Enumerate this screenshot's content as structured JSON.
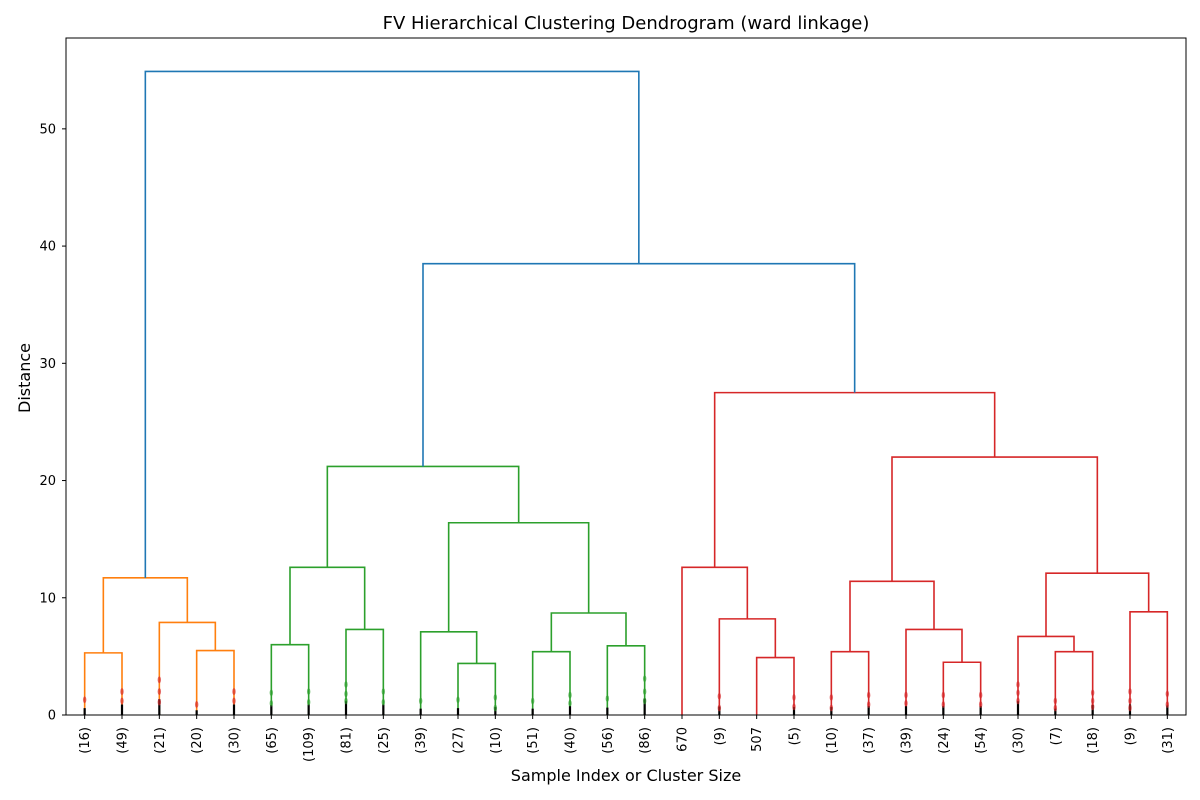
{
  "chart_data": {
    "type": "dendrogram",
    "title": "FV Hierarchical Clustering Dendrogram (ward linkage)",
    "xlabel": "Sample Index or Cluster Size",
    "ylabel": "Distance",
    "ylim": [
      0,
      57.75
    ],
    "yticks": [
      0,
      10,
      20,
      30,
      40,
      50
    ],
    "grid": false,
    "leaves": [
      "(16)",
      "(49)",
      "(21)",
      "(20)",
      "(30)",
      "(65)",
      "(109)",
      "(81)",
      "(25)",
      "(39)",
      "(27)",
      "(10)",
      "(51)",
      "(40)",
      "(56)",
      "(86)",
      "670",
      "(9)",
      "507",
      "(5)",
      "(10)",
      "(37)",
      "(39)",
      "(24)",
      "(54)",
      "(30)",
      "(7)",
      "(18)",
      "(9)",
      "(31)"
    ],
    "colors": {
      "orange": "#ff7f0e",
      "green": "#2ca02c",
      "red": "#d62728",
      "blue": "#1f77b4"
    },
    "links": [
      {
        "left": 0,
        "right": 1,
        "height": 5.3,
        "color": "orange"
      },
      {
        "left": 3,
        "right": 4,
        "height": 5.5,
        "color": "orange"
      },
      {
        "left": 2,
        "right": 31,
        "height": 7.9,
        "color": "orange"
      },
      {
        "left": 30,
        "right": 32,
        "height": 11.7,
        "color": "orange"
      },
      {
        "left": 5,
        "right": 6,
        "height": 6.0,
        "color": "green"
      },
      {
        "left": 7,
        "right": 8,
        "height": 7.3,
        "color": "green"
      },
      {
        "left": 34,
        "right": 35,
        "height": 12.6,
        "color": "green"
      },
      {
        "left": 10,
        "right": 11,
        "height": 4.4,
        "color": "green"
      },
      {
        "left": 9,
        "right": 37,
        "height": 7.1,
        "color": "green"
      },
      {
        "left": 12,
        "right": 13,
        "height": 5.4,
        "color": "green"
      },
      {
        "left": 14,
        "right": 15,
        "height": 5.9,
        "color": "green"
      },
      {
        "left": 39,
        "right": 40,
        "height": 8.7,
        "color": "green"
      },
      {
        "left": 38,
        "right": 41,
        "height": 16.4,
        "color": "green"
      },
      {
        "left": 36,
        "right": 42,
        "height": 21.2,
        "color": "green"
      },
      {
        "left": 18,
        "right": 19,
        "height": 4.9,
        "color": "red"
      },
      {
        "left": 17,
        "right": 44,
        "height": 8.2,
        "color": "red"
      },
      {
        "left": 16,
        "right": 45,
        "height": 12.6,
        "color": "red"
      },
      {
        "left": 20,
        "right": 21,
        "height": 5.4,
        "color": "red"
      },
      {
        "left": 23,
        "right": 24,
        "height": 4.5,
        "color": "red"
      },
      {
        "left": 22,
        "right": 48,
        "height": 7.3,
        "color": "red"
      },
      {
        "left": 47,
        "right": 49,
        "height": 11.4,
        "color": "red"
      },
      {
        "left": 26,
        "right": 27,
        "height": 5.4,
        "color": "red"
      },
      {
        "left": 25,
        "right": 51,
        "height": 6.7,
        "color": "red"
      },
      {
        "left": 28,
        "right": 29,
        "height": 8.8,
        "color": "red"
      },
      {
        "left": 52,
        "right": 53,
        "height": 12.1,
        "color": "red"
      },
      {
        "left": 50,
        "right": 54,
        "height": 22.0,
        "color": "red"
      },
      {
        "left": 46,
        "right": 55,
        "height": 27.5,
        "color": "red"
      },
      {
        "left": 43,
        "right": 56,
        "height": 38.5,
        "color": "blue"
      },
      {
        "left": 33,
        "right": 57,
        "height": 54.9,
        "color": "blue"
      }
    ],
    "leaf_points": [
      {
        "leaf": 0,
        "values": [
          1.3
        ],
        "color": "red"
      },
      {
        "leaf": 1,
        "values": [
          1.2,
          2.0
        ],
        "color": "red"
      },
      {
        "leaf": 2,
        "values": [
          1.1,
          2.0,
          3.0
        ],
        "color": "red"
      },
      {
        "leaf": 3,
        "values": [
          0.9
        ],
        "color": "red"
      },
      {
        "leaf": 4,
        "values": [
          1.2,
          2.0
        ],
        "color": "red"
      },
      {
        "leaf": 5,
        "values": [
          1.0,
          1.9
        ],
        "color": "green"
      },
      {
        "leaf": 6,
        "values": [
          1.1,
          2.0
        ],
        "color": "green"
      },
      {
        "leaf": 7,
        "values": [
          1.2,
          1.8,
          2.6
        ],
        "color": "green"
      },
      {
        "leaf": 8,
        "values": [
          1.1,
          2.0
        ],
        "color": "green"
      },
      {
        "leaf": 9,
        "values": [
          1.2
        ],
        "color": "green"
      },
      {
        "leaf": 10,
        "values": [
          1.3
        ],
        "color": "green"
      },
      {
        "leaf": 11,
        "values": [
          0.6,
          1.5
        ],
        "color": "green"
      },
      {
        "leaf": 12,
        "values": [
          1.2
        ],
        "color": "green"
      },
      {
        "leaf": 13,
        "values": [
          1.0,
          1.7
        ],
        "color": "green"
      },
      {
        "leaf": 14,
        "values": [
          1.4
        ],
        "color": "green"
      },
      {
        "leaf": 15,
        "values": [
          1.2,
          2.0,
          3.1
        ],
        "color": "green"
      },
      {
        "leaf": 17,
        "values": [
          0.6,
          1.6
        ],
        "color": "red"
      },
      {
        "leaf": 19,
        "values": [
          0.7,
          1.5
        ],
        "color": "red"
      },
      {
        "leaf": 20,
        "values": [
          0.6,
          1.5
        ],
        "color": "red"
      },
      {
        "leaf": 21,
        "values": [
          0.9,
          1.7
        ],
        "color": "red"
      },
      {
        "leaf": 22,
        "values": [
          1.0,
          1.7
        ],
        "color": "red"
      },
      {
        "leaf": 23,
        "values": [
          0.9,
          1.7
        ],
        "color": "red"
      },
      {
        "leaf": 24,
        "values": [
          0.9,
          1.7
        ],
        "color": "red"
      },
      {
        "leaf": 25,
        "values": [
          1.2,
          1.9,
          2.6
        ],
        "color": "red"
      },
      {
        "leaf": 26,
        "values": [
          0.6,
          1.2
        ],
        "color": "red"
      },
      {
        "leaf": 27,
        "values": [
          0.7,
          1.2,
          1.9
        ],
        "color": "red"
      },
      {
        "leaf": 28,
        "values": [
          0.6,
          1.2,
          2.0
        ],
        "color": "red"
      },
      {
        "leaf": 29,
        "values": [
          0.9,
          1.8
        ],
        "color": "red"
      }
    ]
  }
}
